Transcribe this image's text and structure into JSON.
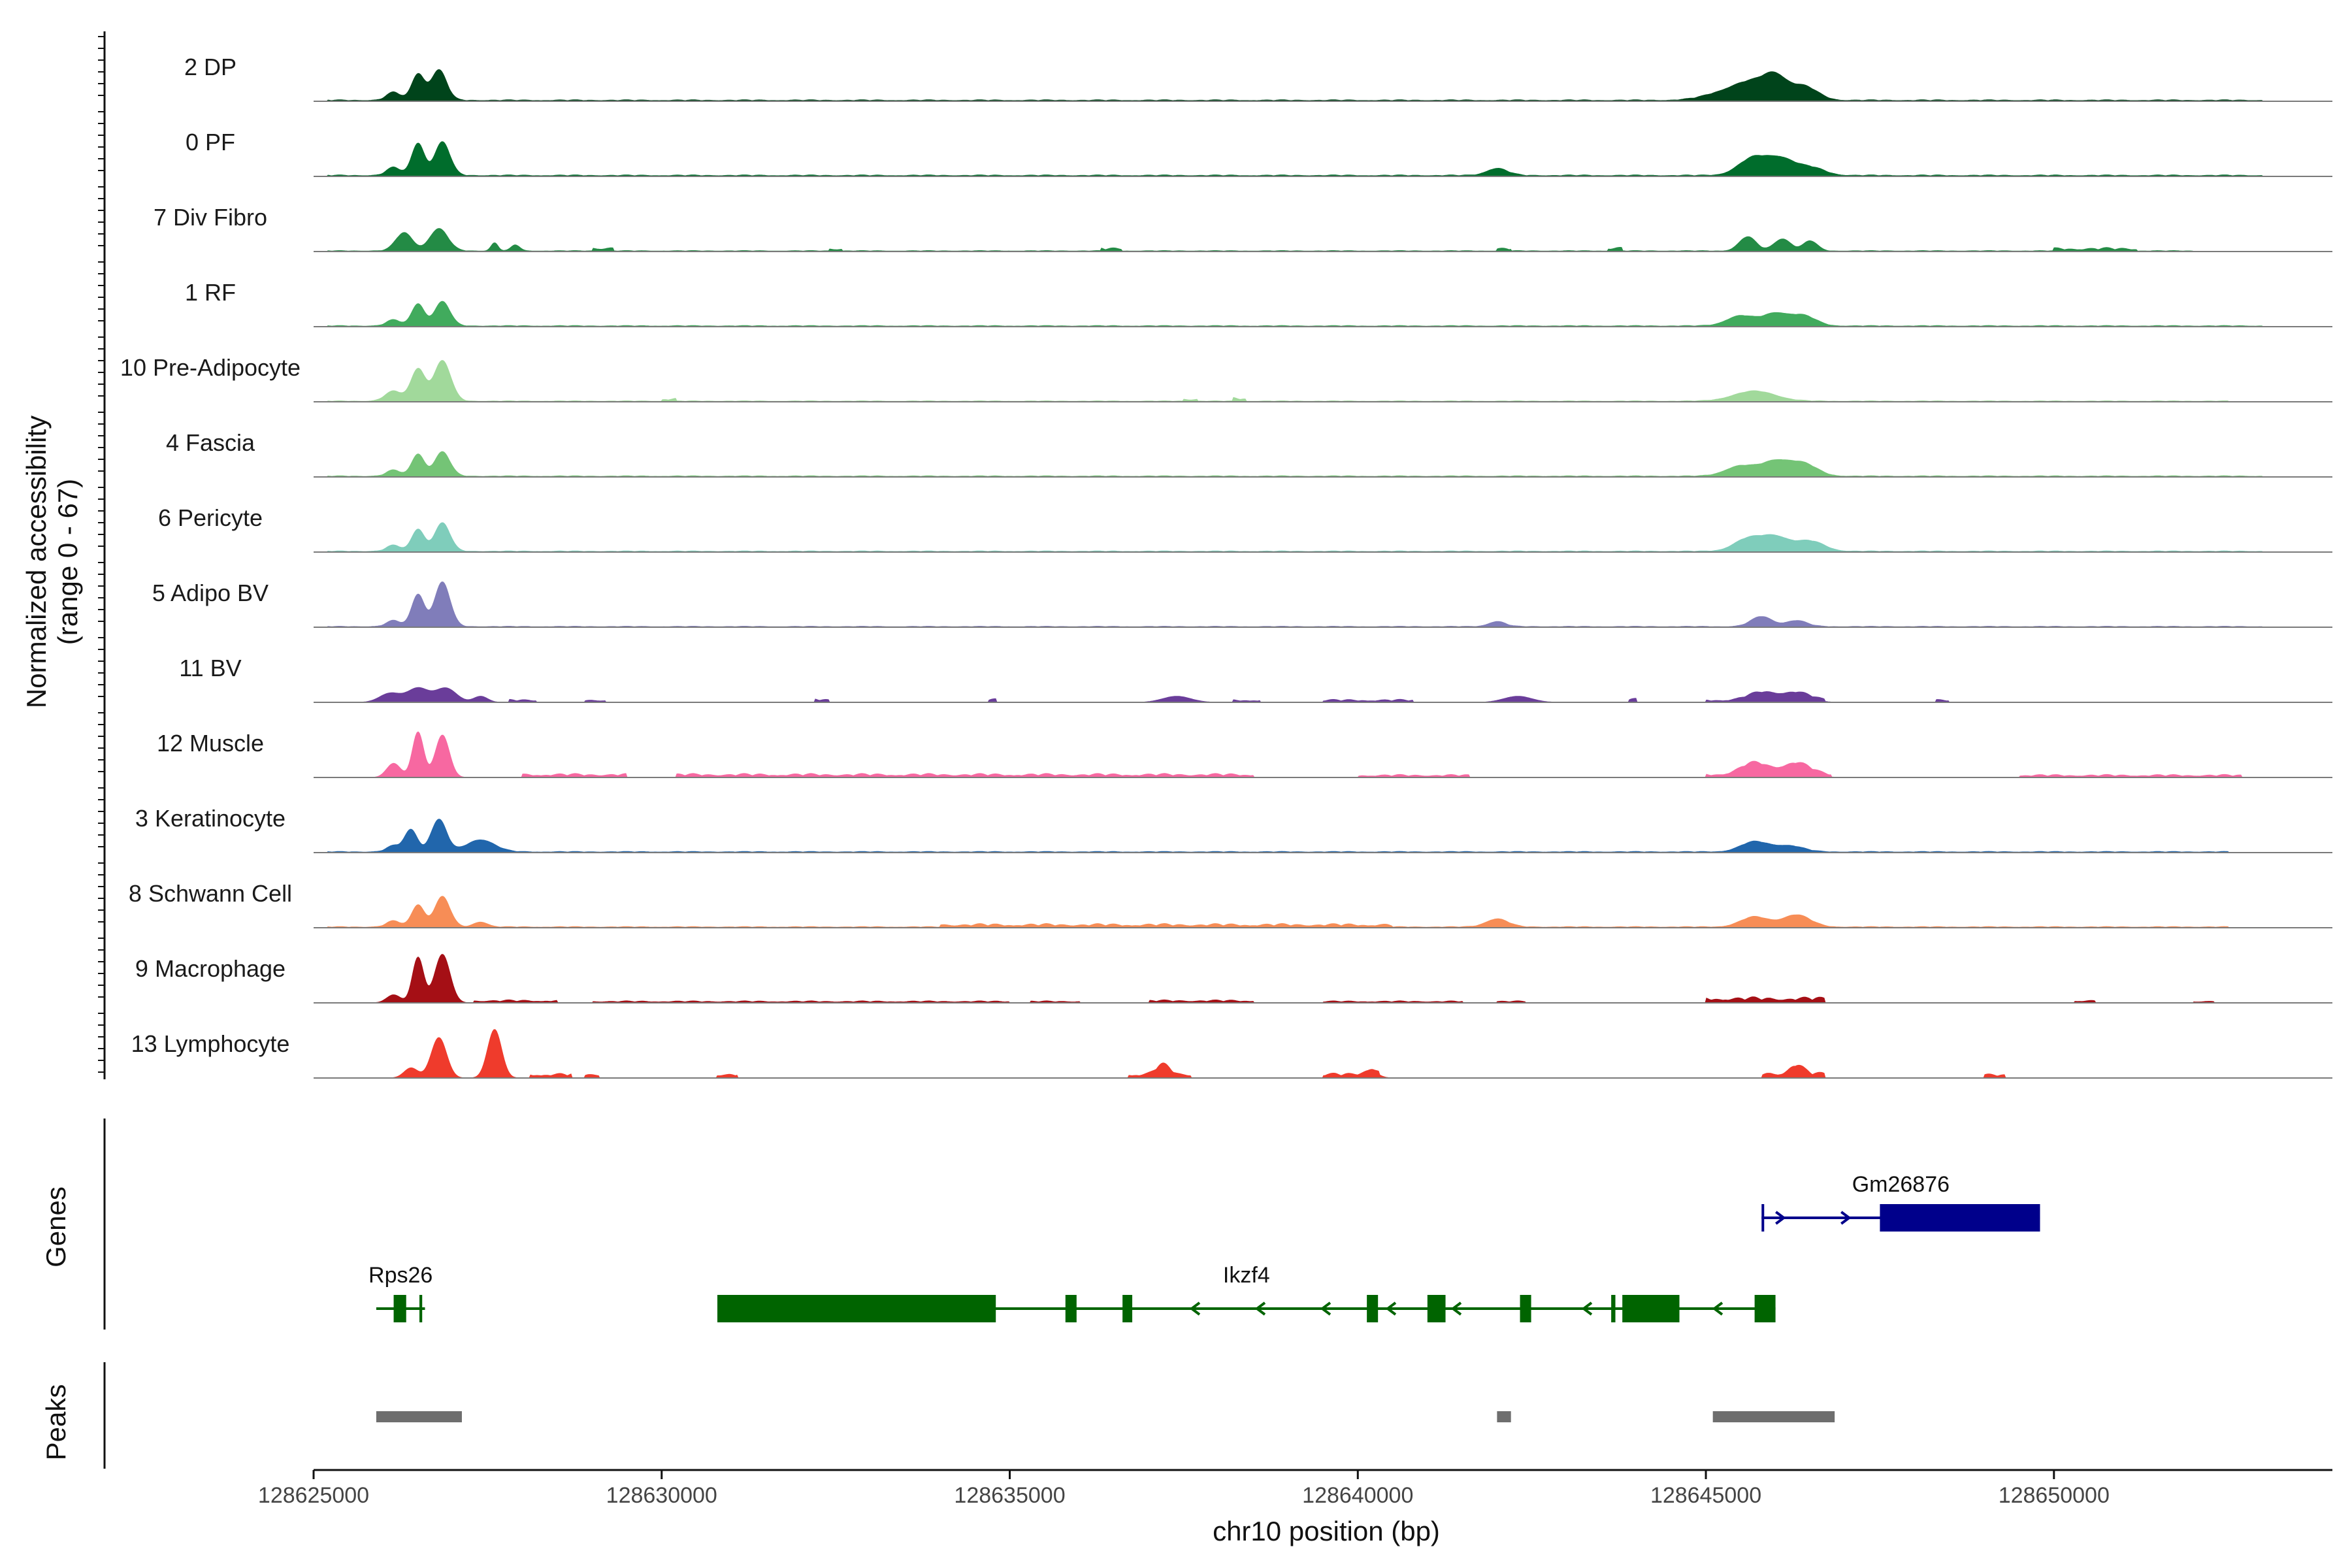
{
  "chart_data": {
    "type": "area",
    "ylabel": "Normalized accessibility",
    "ylabel_range": "(range 0 - 67)",
    "ylim": [
      0,
      67
    ],
    "xlabel": "chr10 position (bp)",
    "xlim": [
      128625000,
      128654000
    ],
    "x_ticks": [
      128625000,
      128630000,
      128635000,
      128640000,
      128645000,
      128650000
    ],
    "x_tick_labels": [
      "128625000",
      "128630000",
      "128635000",
      "128640000",
      "128645000",
      "128650000"
    ],
    "grid": false,
    "tracks": [
      {
        "name": "2 DP",
        "color": "#00441b",
        "peaks": [
          [
            128626500,
            26,
            90
          ],
          [
            128626800,
            30,
            110
          ],
          [
            128626150,
            8,
            100
          ],
          [
            128645700,
            15,
            250
          ],
          [
            128646000,
            18,
            160
          ],
          [
            128646400,
            14,
            200
          ],
          [
            128645300,
            8,
            300
          ]
        ],
        "segments": [
          [
            128625200,
            128653000,
            1.5
          ]
        ]
      },
      {
        "name": "0 PF",
        "color": "#006d2c",
        "peaks": [
          [
            128626500,
            32,
            90
          ],
          [
            128626850,
            33,
            110
          ],
          [
            128626150,
            8,
            100
          ],
          [
            128642000,
            7,
            150
          ],
          [
            128645700,
            18,
            220
          ],
          [
            128646100,
            14,
            180
          ],
          [
            128646500,
            8,
            200
          ]
        ],
        "segments": [
          [
            128625200,
            128653000,
            1.5
          ]
        ]
      },
      {
        "name": "7 Div Fibro",
        "color": "#238b45",
        "peaks": [
          [
            128626300,
            18,
            120
          ],
          [
            128626800,
            22,
            130
          ],
          [
            128627600,
            8,
            50
          ],
          [
            128627900,
            6,
            60
          ],
          [
            128645600,
            14,
            120
          ],
          [
            128646100,
            12,
            120
          ],
          [
            128646500,
            10,
            100
          ]
        ],
        "segments": [
          [
            128625200,
            128652000,
            1
          ],
          [
            128629000,
            128629300,
            4
          ],
          [
            128632400,
            128632600,
            3
          ],
          [
            128636300,
            128636600,
            3
          ],
          [
            128642000,
            128642200,
            3
          ],
          [
            128643600,
            128643800,
            4
          ],
          [
            128650000,
            128651200,
            3
          ]
        ]
      },
      {
        "name": "1 RF",
        "color": "#41ab5d",
        "peaks": [
          [
            128626500,
            22,
            90
          ],
          [
            128626850,
            24,
            110
          ],
          [
            128626150,
            6,
            100
          ],
          [
            128645500,
            10,
            200
          ],
          [
            128646000,
            12,
            180
          ],
          [
            128646400,
            10,
            180
          ]
        ],
        "segments": [
          [
            128625200,
            128653000,
            1.2
          ]
        ]
      },
      {
        "name": "10 Pre-Adipocyte",
        "color": "#a1d99b",
        "peaks": [
          [
            128626500,
            32,
            100
          ],
          [
            128626850,
            40,
            120
          ],
          [
            128626150,
            10,
            120
          ],
          [
            128645700,
            10,
            300
          ]
        ],
        "segments": [
          [
            128625200,
            128652500,
            1
          ],
          [
            128630000,
            128630200,
            3
          ],
          [
            128637500,
            128637700,
            3
          ],
          [
            128638200,
            128638400,
            4
          ]
        ]
      },
      {
        "name": "4 Fascia",
        "color": "#74c476",
        "peaks": [
          [
            128626500,
            22,
            90
          ],
          [
            128626850,
            24,
            110
          ],
          [
            128626150,
            6,
            100
          ],
          [
            128645500,
            10,
            220
          ],
          [
            128646000,
            14,
            200
          ],
          [
            128646400,
            12,
            200
          ]
        ],
        "segments": [
          [
            128625200,
            128653000,
            1.2
          ]
        ]
      },
      {
        "name": "6 Pericyte",
        "color": "#7fcdbb",
        "peaks": [
          [
            128626500,
            22,
            90
          ],
          [
            128626850,
            28,
            110
          ],
          [
            128626150,
            6,
            100
          ],
          [
            128645600,
            12,
            200
          ],
          [
            128646000,
            14,
            200
          ],
          [
            128646500,
            10,
            200
          ]
        ],
        "segments": [
          [
            128625200,
            128653000,
            1.2
          ]
        ]
      },
      {
        "name": "5 Adipo BV",
        "color": "#807dba",
        "peaks": [
          [
            128626500,
            32,
            90
          ],
          [
            128626850,
            44,
            110
          ],
          [
            128626150,
            6,
            100
          ],
          [
            128642000,
            5,
            120
          ],
          [
            128645800,
            10,
            150
          ],
          [
            128646300,
            6,
            150
          ]
        ],
        "segments": [
          [
            128625200,
            128653000,
            1
          ]
        ]
      },
      {
        "name": "11 BV",
        "color": "#6a3d9a",
        "peaks": [
          [
            128626100,
            9,
            150
          ],
          [
            128626500,
            14,
            150
          ],
          [
            128626900,
            14,
            150
          ],
          [
            128627400,
            6,
            100
          ],
          [
            128637400,
            6,
            200
          ],
          [
            128642300,
            6,
            200
          ],
          [
            128645800,
            8,
            200
          ],
          [
            128646300,
            8,
            200
          ]
        ],
        "segments": [
          [
            128627800,
            128628200,
            3
          ],
          [
            128628900,
            128629200,
            3
          ],
          [
            128632200,
            128632400,
            4
          ],
          [
            128634700,
            128634800,
            4
          ],
          [
            128638200,
            128638600,
            3
          ],
          [
            128639500,
            128640800,
            3
          ],
          [
            128643900,
            128644000,
            4
          ],
          [
            128645000,
            128646700,
            3
          ],
          [
            128648300,
            128648500,
            3
          ]
        ]
      },
      {
        "name": "12 Muscle",
        "color": "#f768a1",
        "peaks": [
          [
            128626500,
            45,
            80
          ],
          [
            128626850,
            42,
            100
          ],
          [
            128626150,
            14,
            100
          ],
          [
            128645700,
            12,
            200
          ],
          [
            128646300,
            12,
            200
          ]
        ],
        "segments": [
          [
            128628000,
            128629500,
            4
          ],
          [
            128630200,
            128638500,
            4
          ],
          [
            128640000,
            128641600,
            3
          ],
          [
            128645000,
            128646800,
            4
          ],
          [
            128649500,
            128652700,
            3
          ]
        ]
      },
      {
        "name": "3 Keratinocyte",
        "color": "#2166ac",
        "peaks": [
          [
            128626400,
            22,
            90
          ],
          [
            128626800,
            32,
            110
          ],
          [
            128626150,
            6,
            100
          ],
          [
            128627400,
            12,
            200
          ],
          [
            128645700,
            10,
            200
          ],
          [
            128646200,
            6,
            200
          ]
        ],
        "segments": [
          [
            128625200,
            128652500,
            1.2
          ]
        ]
      },
      {
        "name": "8 Schwann Cell",
        "color": "#f78d56",
        "peaks": [
          [
            128626500,
            22,
            90
          ],
          [
            128626850,
            30,
            110
          ],
          [
            128626150,
            6,
            100
          ],
          [
            128627400,
            5,
            100
          ],
          [
            128642000,
            8,
            160
          ],
          [
            128645700,
            10,
            200
          ],
          [
            128646300,
            12,
            200
          ]
        ],
        "segments": [
          [
            128625200,
            128652500,
            1.2
          ],
          [
            128634000,
            128640500,
            3
          ]
        ]
      },
      {
        "name": "9 Macrophage",
        "color": "#a50f15",
        "peaks": [
          [
            128626500,
            45,
            80
          ],
          [
            128626850,
            48,
            110
          ],
          [
            128626150,
            8,
            100
          ]
        ],
        "segments": [
          [
            128627300,
            128628500,
            3
          ],
          [
            128629000,
            128635000,
            2
          ],
          [
            128635300,
            128636000,
            2
          ],
          [
            128637000,
            128638500,
            3
          ],
          [
            128639500,
            128641500,
            2
          ],
          [
            128642000,
            128642400,
            2
          ],
          [
            128645000,
            128646700,
            6
          ],
          [
            128650300,
            128650600,
            3
          ],
          [
            128652000,
            128652300,
            2
          ]
        ]
      },
      {
        "name": "13 Lymphocyte",
        "color": "#ef3b2c",
        "peaks": [
          [
            128626800,
            40,
            110
          ],
          [
            128627600,
            48,
            100
          ],
          [
            128626400,
            10,
            100
          ],
          [
            128637200,
            10,
            100
          ],
          [
            128640200,
            6,
            100
          ],
          [
            128646300,
            9,
            100
          ]
        ],
        "segments": [
          [
            128628100,
            128628700,
            5
          ],
          [
            128628900,
            128629100,
            5
          ],
          [
            128630800,
            128631100,
            5
          ],
          [
            128636700,
            128637600,
            5
          ],
          [
            128639500,
            128640300,
            5
          ],
          [
            128645800,
            128646700,
            6
          ],
          [
            128649000,
            128649300,
            4
          ]
        ]
      }
    ],
    "genes_label": "Genes",
    "genes": [
      {
        "name": "Gm26876",
        "strand": "+",
        "color": "#00008b",
        "row": 0,
        "start": 128645800,
        "end": 128649800,
        "exons": [
          [
            128645800,
            128645820
          ],
          [
            128647500,
            128649800
          ]
        ]
      },
      {
        "name": "Rps26",
        "strand": "-",
        "color": "#006400",
        "row": 1,
        "start": 128625900,
        "end": 128626600,
        "exons": [
          [
            128626150,
            128626330
          ],
          [
            128626520,
            128626560
          ]
        ]
      },
      {
        "name": "Ikzf4",
        "strand": "-",
        "color": "#006400",
        "row": 1,
        "start": 128630800,
        "end": 128646000,
        "exons": [
          [
            128630800,
            128634800
          ],
          [
            128635800,
            128635960
          ],
          [
            128636620,
            128636760
          ],
          [
            128640130,
            128640290
          ],
          [
            128641000,
            128641260
          ],
          [
            128642330,
            128642490
          ],
          [
            128643640,
            128643700
          ],
          [
            128643800,
            128644620
          ],
          [
            128645700,
            128646000
          ]
        ]
      }
    ],
    "peaks_label": "Peaks",
    "peak_regions": [
      [
        128625900,
        128627130
      ],
      [
        128642000,
        128642200
      ],
      [
        128645100,
        128646850
      ]
    ]
  }
}
